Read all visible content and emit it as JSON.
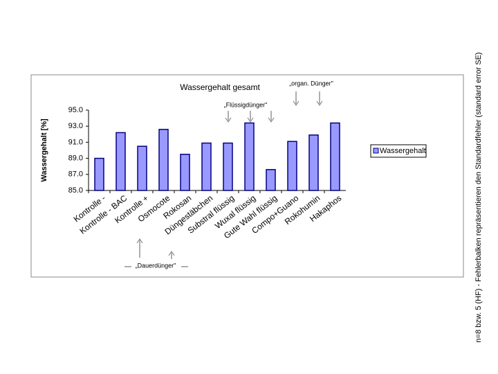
{
  "chart_data": {
    "type": "bar",
    "title": "Wassergehalt gesamt",
    "y_label": "Wassergehalt [%]",
    "side_note": "n=8 bzw. 5 (HF) - Fehlerbalken repräsentieren den Standardfehler (standard error SE)",
    "annotations": [
      "„organ. Dünger\"",
      "„Flüssigdünger\"",
      "„Dauerdünger\""
    ],
    "categories": [
      "Kontrolle -",
      "Kontrolle - BAC",
      "Kontrolle +",
      "Osmocote",
      "Rokosan",
      "Düngestäbchen",
      "Substral flüssig",
      "Wuxal flüssig",
      "Gute Wahl flüssig",
      "Compo+Guano",
      "Rokohumin",
      "Hakaphos"
    ],
    "series": [
      {
        "name": "Wassergehalt",
        "color": "#9999ff",
        "values": [
          89.0,
          92.2,
          90.5,
          92.6,
          89.5,
          90.9,
          90.9,
          93.4,
          87.6,
          91.1,
          91.9,
          93.4
        ]
      }
    ],
    "ylim": [
      85,
      95
    ],
    "yticks": [
      {
        "value": 85,
        "label": "85.0"
      },
      {
        "value": 87,
        "label": "87.0"
      },
      {
        "value": 89,
        "label": "89.0"
      },
      {
        "value": 91,
        "label": "91.0"
      },
      {
        "value": 93,
        "label": "93.0"
      },
      {
        "value": 95,
        "label": "95.0"
      }
    ],
    "legend": "right"
  }
}
